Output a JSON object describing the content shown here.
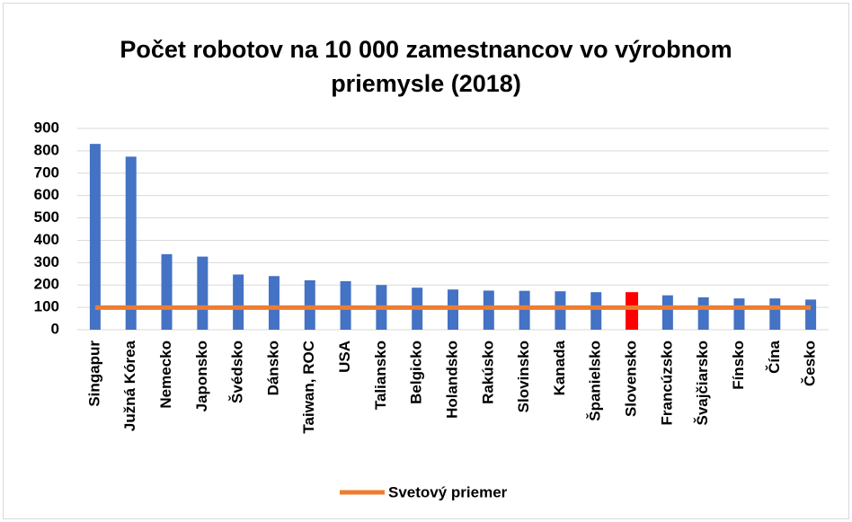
{
  "chart_data": {
    "type": "bar",
    "title": [
      "Počet robotov na 10 000 zamestnancov vo výrobnom",
      "priemysle (2018)"
    ],
    "categories": [
      "Singapur",
      "Južná Kórea",
      "Nemecko",
      "Japonsko",
      "Švédsko",
      "Dánsko",
      "Taiwan, ROC",
      "USA",
      "Taliansko",
      "Belgicko",
      "Holandsko",
      "Rakúsko",
      "Slovinsko",
      "Kanada",
      "Španielsko",
      "Slovensko",
      "Francúzsko",
      "Švajčiarsko",
      "Fínsko",
      "Čína",
      "Česko"
    ],
    "series": [
      {
        "values": [
          831,
          774,
          338,
          327,
          247,
          240,
          221,
          217,
          200,
          188,
          180,
          175,
          174,
          172,
          168,
          168,
          154,
          145,
          140,
          140,
          135
        ],
        "colors": [
          "#4472c4",
          "#4472c4",
          "#4472c4",
          "#4472c4",
          "#4472c4",
          "#4472c4",
          "#4472c4",
          "#4472c4",
          "#4472c4",
          "#4472c4",
          "#4472c4",
          "#4472c4",
          "#4472c4",
          "#4472c4",
          "#4472c4",
          "#ff0000",
          "#4472c4",
          "#4472c4",
          "#4472c4",
          "#4472c4",
          "#4472c4"
        ]
      },
      {
        "name": "Svetový priemer",
        "type": "line",
        "color": "#ed7d31",
        "values": [
          99,
          99,
          99,
          99,
          99,
          99,
          99,
          99,
          99,
          99,
          99,
          99,
          99,
          99,
          99,
          99,
          99,
          99,
          99,
          99,
          99
        ]
      }
    ],
    "ylim": [
      0,
      900
    ],
    "yticks": [
      0,
      100,
      200,
      300,
      400,
      500,
      600,
      700,
      800,
      900
    ],
    "grid": true,
    "legend": "bottom"
  }
}
